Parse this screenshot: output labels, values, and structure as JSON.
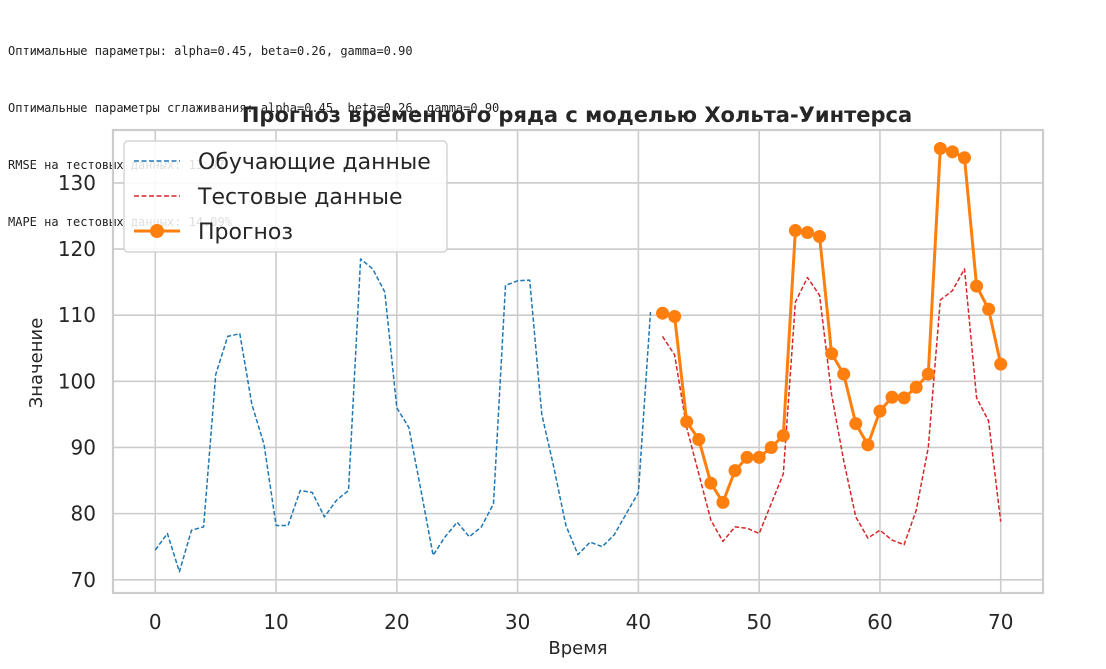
{
  "console_output": {
    "lines": [
      "Оптимальные параметры: alpha=0.45, beta=0.26, gamma=0.90",
      "Оптимальные параметры сглаживания: alpha=0.45, beta=0.26, gamma=0.90",
      "RMSE на тестовых данных: 13.97",
      "MAPE на тестовых данных: 14.09%"
    ]
  },
  "chart_data": {
    "type": "line",
    "title": "Прогноз временного ряда с моделью Хольта-Уинтерса",
    "xlabel": "Время",
    "ylabel": "Значение",
    "xlim": [
      -3.5,
      73.5
    ],
    "ylim": [
      68,
      138
    ],
    "x_ticks": [
      0,
      10,
      20,
      30,
      40,
      50,
      60,
      70
    ],
    "y_ticks": [
      70,
      80,
      90,
      100,
      110,
      120,
      130
    ],
    "grid": true,
    "legend_position": "upper-left",
    "series": [
      {
        "name": "Обучающие данные",
        "style": "dashed",
        "color": "#1f77b4",
        "x": [
          0,
          1,
          2,
          3,
          4,
          5,
          6,
          7,
          8,
          9,
          10,
          11,
          12,
          13,
          14,
          15,
          16,
          17,
          18,
          19,
          20,
          21,
          22,
          23,
          24,
          25,
          26,
          27,
          28,
          29,
          30,
          31,
          32,
          33,
          34,
          35,
          36,
          37,
          38,
          39,
          40,
          41
        ],
        "y": [
          74.5,
          77,
          71.2,
          77.5,
          78,
          101,
          106.8,
          107.2,
          96.5,
          90.5,
          78.2,
          78.2,
          83.5,
          83.2,
          79.5,
          82,
          83.5,
          118.5,
          117,
          113.5,
          96,
          93,
          83.5,
          73.7,
          76.5,
          78.7,
          76.5,
          78,
          81.5,
          114.5,
          115.2,
          115.3,
          95,
          87,
          78.2,
          73.8,
          75.7,
          75,
          76.8,
          80,
          83.2,
          110.5
        ]
      },
      {
        "name": "Тестовые данные",
        "style": "dashed",
        "color": "#d62728",
        "x": [
          42,
          43,
          44,
          45,
          46,
          47,
          48,
          49,
          50,
          51,
          52,
          53,
          54,
          55,
          56,
          57,
          58,
          59,
          60,
          61,
          62,
          63,
          64,
          65,
          66,
          67,
          68,
          69,
          70
        ],
        "y": [
          106.8,
          104,
          93,
          86,
          79,
          75.8,
          78,
          77.8,
          77,
          81.5,
          86,
          112,
          115.7,
          113,
          98,
          88,
          79.5,
          76.3,
          77.5,
          76,
          75.3,
          80.5,
          90,
          112.3,
          113.7,
          117,
          97.5,
          94,
          78.8
        ]
      },
      {
        "name": "Прогноз",
        "style": "solid-markers",
        "color": "#ff7f0e",
        "x": [
          42,
          43,
          44,
          45,
          46,
          47,
          48,
          49,
          50,
          51,
          52,
          53,
          54,
          55,
          56,
          57,
          58,
          59,
          60,
          61,
          62,
          63,
          64,
          65,
          66,
          67,
          68,
          69,
          70
        ],
        "y": [
          110.3,
          109.8,
          93.9,
          91.2,
          84.6,
          81.7,
          86.5,
          88.5,
          88.5,
          90,
          91.8,
          122.8,
          122.5,
          121.9,
          104.2,
          101.1,
          93.6,
          90.4,
          95.5,
          97.6,
          97.5,
          99.1,
          101.1,
          135.2,
          134.7,
          133.8,
          114.4,
          110.9,
          102.6
        ]
      }
    ]
  }
}
